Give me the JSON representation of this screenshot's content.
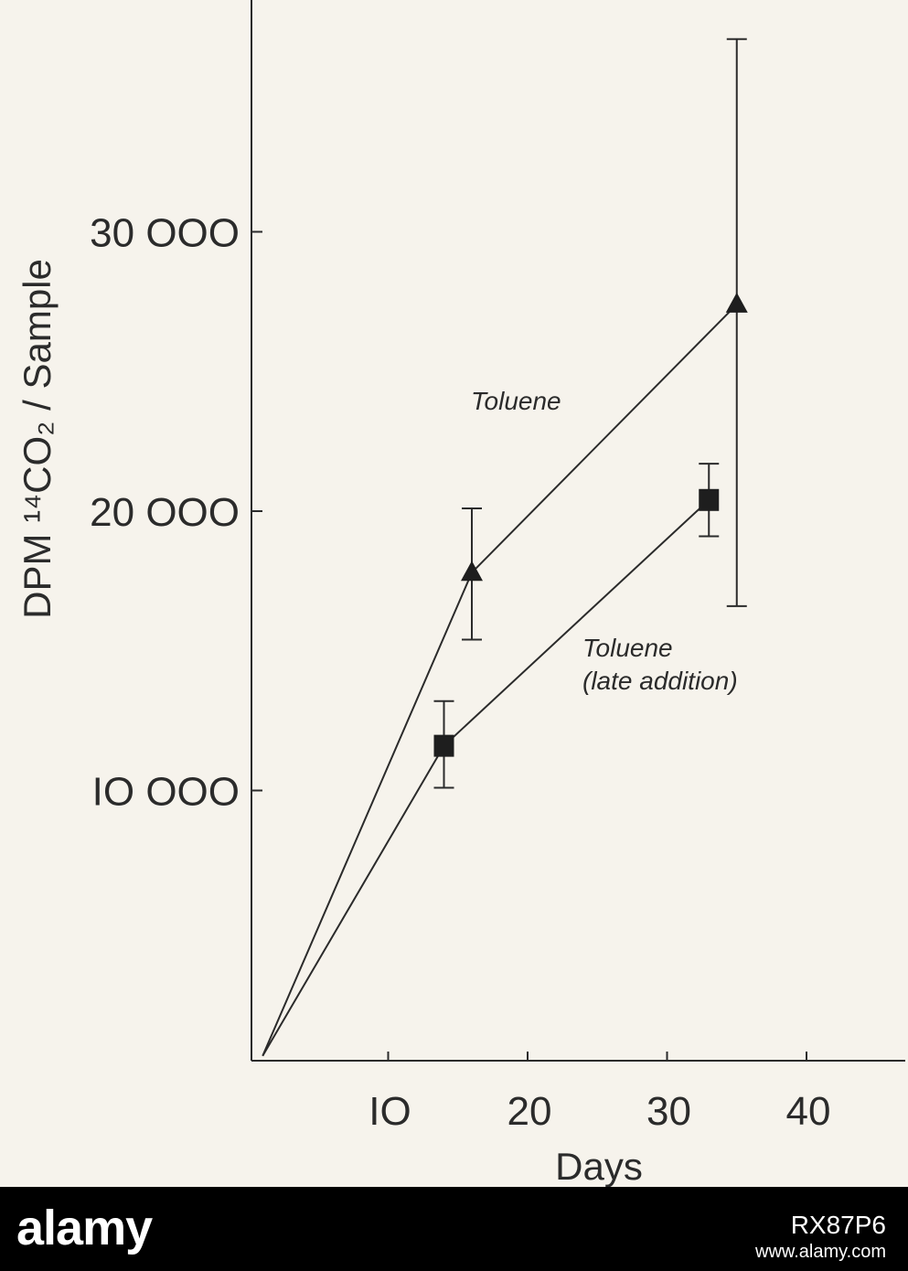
{
  "chart_data": {
    "type": "line",
    "xlabel": "Days",
    "ylabel": "DPM ¹⁴CO₂ / Sample",
    "xlim": [
      0,
      46
    ],
    "ylim": [
      0,
      37000
    ],
    "x_ticks": [
      10,
      20,
      30,
      40
    ],
    "x_tick_labels": [
      "IO",
      "20",
      "30",
      "40"
    ],
    "y_ticks": [
      10000,
      20000,
      30000
    ],
    "y_tick_labels": [
      "IO OOO",
      "20 OOO",
      "30 OOO"
    ],
    "grid": false,
    "series": [
      {
        "name": "Toluene",
        "marker": "triangle",
        "points": [
          {
            "x": 1,
            "y": 500
          },
          {
            "x": 16,
            "y": 17800,
            "err_low": 15400,
            "err_high": 20100
          },
          {
            "x": 35,
            "y": 27400,
            "err_low": 16600,
            "err_high": 36900
          }
        ]
      },
      {
        "name": "Toluene (late addition)",
        "marker": "square",
        "points": [
          {
            "x": 1,
            "y": 500
          },
          {
            "x": 14,
            "y": 11600,
            "err_low": 10100,
            "err_high": 13200
          },
          {
            "x": 33,
            "y": 20400,
            "err_low": 19100,
            "err_high": 21700
          }
        ]
      }
    ],
    "series_labels": [
      {
        "lines": [
          "Toluene"
        ]
      },
      {
        "lines": [
          "Toluene",
          "(late addition)"
        ]
      }
    ]
  },
  "watermark": {
    "logo": "alamy",
    "image_id": "RX87P6",
    "url": "www.alamy.com"
  }
}
